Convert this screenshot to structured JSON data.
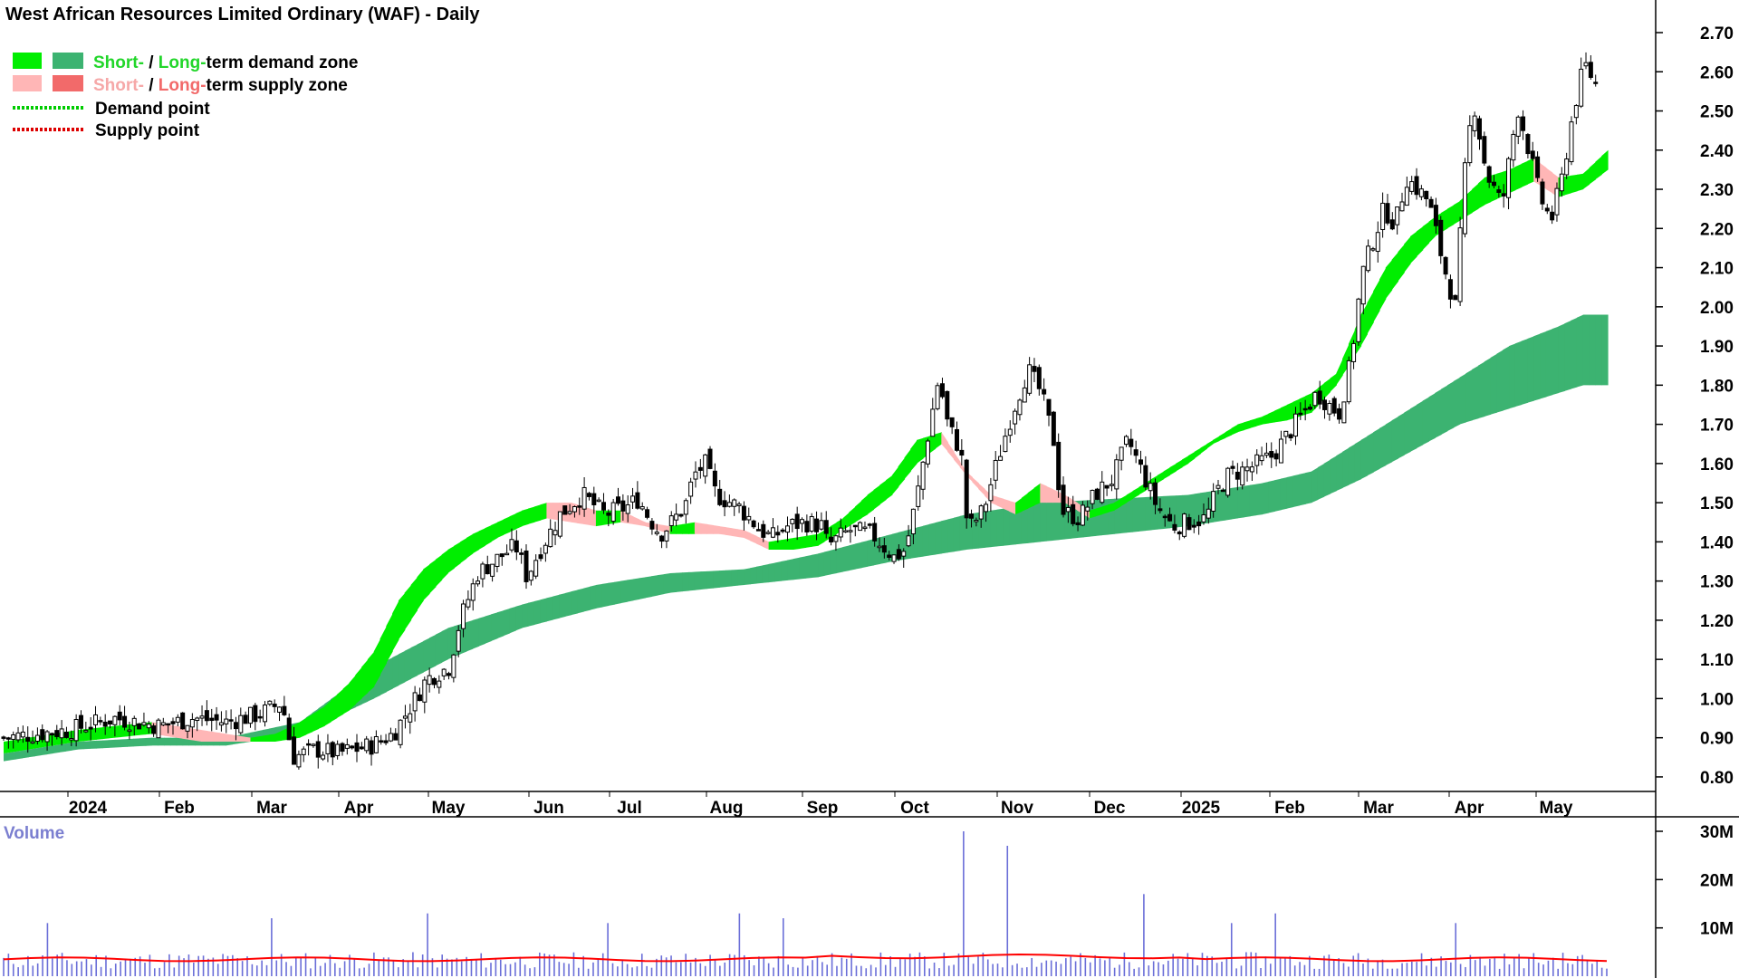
{
  "chart": {
    "title": "West African Resources Limited Ordinary (WAF) - Daily",
    "legend": {
      "demand_zone": {
        "short": "Short-",
        "sep": " / ",
        "long": "Long-",
        "suffix": "term demand zone"
      },
      "supply_zone": {
        "short": "Short-",
        "sep": " / ",
        "long": "Long-",
        "suffix": "term supply zone"
      },
      "demand_point": "Demand point",
      "supply_point": "Supply point"
    },
    "volume_title": "Volume",
    "colors": {
      "short_demand": "#00ee00",
      "long_demand": "#3cb371",
      "short_supply": "#ffb6b6",
      "long_supply": "#f26522",
      "candle": "#000000",
      "volume_bar": "#6a6ed8",
      "volume_ma": "#ff0000",
      "demand_point": "#00cc00",
      "supply_point": "#dd0000"
    }
  },
  "chart_data": [
    {
      "type": "candlestick",
      "title": "West African Resources Limited Ordinary (WAF) - Daily",
      "x_labels": [
        "2024",
        "Feb",
        "Mar",
        "Apr",
        "May",
        "Jun",
        "Jul",
        "Aug",
        "Sep",
        "Oct",
        "Nov",
        "Dec",
        "2025",
        "Feb",
        "Mar",
        "Apr",
        "May"
      ],
      "y_ticks": [
        "2.70",
        "2.60",
        "2.50",
        "2.40",
        "2.30",
        "2.20",
        "2.10",
        "2.00",
        "1.90",
        "1.80",
        "1.70",
        "1.60",
        "1.50",
        "1.40",
        "1.30",
        "1.20",
        "1.10",
        "1.00",
        "0.90",
        "0.80"
      ],
      "ylim": [
        0.75,
        2.78
      ],
      "grid": false,
      "legend": "top-left",
      "close_series": {
        "name": "Close",
        "points": [
          [
            0,
            0.9
          ],
          [
            3,
            0.92
          ],
          [
            5,
            0.95
          ],
          [
            7,
            0.93
          ],
          [
            8.5,
            0.95
          ],
          [
            10,
            0.94
          ],
          [
            11.5,
            0.96
          ],
          [
            12.5,
            0.99
          ],
          [
            13,
            0.85
          ],
          [
            14,
            0.87
          ],
          [
            15,
            0.86
          ],
          [
            16.5,
            0.88
          ],
          [
            17.5,
            0.91
          ],
          [
            18.5,
            1.0
          ],
          [
            19,
            1.05
          ],
          [
            20,
            1.08
          ],
          [
            20.5,
            1.2
          ],
          [
            21.3,
            1.32
          ],
          [
            22,
            1.35
          ],
          [
            23,
            1.39
          ],
          [
            23.5,
            1.31
          ],
          [
            24,
            1.37
          ],
          [
            25,
            1.47
          ],
          [
            26,
            1.52
          ],
          [
            27,
            1.47
          ],
          [
            28,
            1.49
          ],
          [
            28.5,
            1.51
          ],
          [
            29,
            1.46
          ],
          [
            29.5,
            1.42
          ],
          [
            30,
            1.45
          ],
          [
            30.6,
            1.49
          ],
          [
            31,
            1.57
          ],
          [
            31.5,
            1.6
          ],
          [
            32,
            1.52
          ],
          [
            33,
            1.49
          ],
          [
            34,
            1.43
          ],
          [
            34.5,
            1.41
          ],
          [
            35.2,
            1.44
          ],
          [
            36,
            1.45
          ],
          [
            36.8,
            1.44
          ],
          [
            37,
            1.39
          ],
          [
            38,
            1.43
          ],
          [
            39,
            1.42
          ],
          [
            40,
            1.36
          ],
          [
            40.5,
            1.38
          ],
          [
            41,
            1.51
          ],
          [
            41.6,
            1.7
          ],
          [
            42,
            1.82
          ],
          [
            42.4,
            1.7
          ],
          [
            43,
            1.63
          ],
          [
            43.3,
            1.43
          ],
          [
            44,
            1.48
          ],
          [
            44.6,
            1.6
          ],
          [
            45.3,
            1.73
          ],
          [
            46,
            1.84
          ],
          [
            46.6,
            1.78
          ],
          [
            47.2,
            1.65
          ],
          [
            47.5,
            1.48
          ],
          [
            48.3,
            1.46
          ],
          [
            49,
            1.52
          ],
          [
            49.8,
            1.56
          ],
          [
            50.5,
            1.66
          ],
          [
            51.2,
            1.57
          ],
          [
            51.8,
            1.49
          ],
          [
            52.5,
            1.44
          ],
          [
            53.2,
            1.45
          ],
          [
            54,
            1.46
          ],
          [
            54.5,
            1.53
          ],
          [
            55,
            1.57
          ],
          [
            56,
            1.59
          ],
          [
            57,
            1.62
          ],
          [
            58,
            1.7
          ],
          [
            59,
            1.78
          ],
          [
            59.7,
            1.74
          ],
          [
            60,
            1.73
          ],
          [
            60.5,
            1.86
          ],
          [
            61,
            2.08
          ],
          [
            61.5,
            2.17
          ],
          [
            62,
            2.25
          ],
          [
            62.5,
            2.21
          ],
          [
            63,
            2.33
          ],
          [
            64,
            2.27
          ],
          [
            64.7,
            2.1
          ],
          [
            65.2,
            2.0
          ],
          [
            65.6,
            2.33
          ],
          [
            66,
            2.53
          ],
          [
            66.6,
            2.34
          ],
          [
            67.3,
            2.26
          ],
          [
            68,
            2.51
          ],
          [
            68.5,
            2.4
          ],
          [
            69,
            2.28
          ],
          [
            69.5,
            2.22
          ],
          [
            70,
            2.33
          ],
          [
            70.5,
            2.5
          ],
          [
            71,
            2.62
          ],
          [
            71.5,
            2.57
          ]
        ]
      },
      "short_term_zone": {
        "upper": [
          [
            0,
            0.89
          ],
          [
            3,
            0.92
          ],
          [
            6,
            0.94
          ],
          [
            7,
            0.93
          ],
          [
            8,
            0.92
          ],
          [
            9,
            0.91
          ],
          [
            10,
            0.9
          ],
          [
            11,
            0.91
          ],
          [
            12,
            0.94
          ],
          [
            13,
            0.98
          ],
          [
            14,
            1.04
          ],
          [
            15,
            1.12
          ],
          [
            16,
            1.25
          ],
          [
            17,
            1.33
          ],
          [
            18,
            1.38
          ],
          [
            19,
            1.42
          ],
          [
            20,
            1.45
          ],
          [
            21,
            1.48
          ],
          [
            22,
            1.5
          ],
          [
            23,
            1.5
          ],
          [
            24,
            1.48
          ],
          [
            25,
            1.48
          ],
          [
            26,
            1.45
          ],
          [
            27,
            1.44
          ],
          [
            28,
            1.45
          ],
          [
            29,
            1.44
          ],
          [
            30,
            1.43
          ],
          [
            31,
            1.4
          ],
          [
            32,
            1.41
          ],
          [
            33,
            1.42
          ],
          [
            34,
            1.46
          ],
          [
            35,
            1.52
          ],
          [
            36,
            1.57
          ],
          [
            37,
            1.66
          ],
          [
            38,
            1.68
          ],
          [
            39,
            1.58
          ],
          [
            40,
            1.52
          ],
          [
            41,
            1.5
          ],
          [
            42,
            1.55
          ],
          [
            43,
            1.52
          ],
          [
            44,
            1.48
          ],
          [
            45,
            1.5
          ],
          [
            46,
            1.54
          ],
          [
            47,
            1.58
          ],
          [
            48,
            1.62
          ],
          [
            49,
            1.66
          ],
          [
            50,
            1.7
          ],
          [
            51,
            1.72
          ],
          [
            52,
            1.75
          ],
          [
            53,
            1.78
          ],
          [
            54,
            1.83
          ],
          [
            55,
            1.98
          ],
          [
            56,
            2.1
          ],
          [
            57,
            2.18
          ],
          [
            58,
            2.23
          ],
          [
            59,
            2.27
          ],
          [
            60,
            2.33
          ],
          [
            61,
            2.35
          ],
          [
            62,
            2.38
          ],
          [
            63,
            2.33
          ],
          [
            64,
            2.34
          ],
          [
            65,
            2.4
          ]
        ],
        "lower": [
          [
            0,
            0.86
          ],
          [
            3,
            0.89
          ],
          [
            6,
            0.91
          ],
          [
            7,
            0.9
          ],
          [
            8,
            0.89
          ],
          [
            9,
            0.89
          ],
          [
            10,
            0.89
          ],
          [
            11,
            0.89
          ],
          [
            12,
            0.9
          ],
          [
            13,
            0.93
          ],
          [
            14,
            0.97
          ],
          [
            15,
            1.03
          ],
          [
            16,
            1.15
          ],
          [
            17,
            1.25
          ],
          [
            18,
            1.32
          ],
          [
            19,
            1.37
          ],
          [
            20,
            1.41
          ],
          [
            21,
            1.44
          ],
          [
            22,
            1.46
          ],
          [
            23,
            1.45
          ],
          [
            24,
            1.44
          ],
          [
            25,
            1.45
          ],
          [
            26,
            1.44
          ],
          [
            27,
            1.42
          ],
          [
            28,
            1.42
          ],
          [
            29,
            1.42
          ],
          [
            30,
            1.41
          ],
          [
            31,
            1.38
          ],
          [
            32,
            1.38
          ],
          [
            33,
            1.39
          ],
          [
            34,
            1.43
          ],
          [
            35,
            1.47
          ],
          [
            36,
            1.52
          ],
          [
            37,
            1.6
          ],
          [
            38,
            1.65
          ],
          [
            39,
            1.57
          ],
          [
            40,
            1.5
          ],
          [
            41,
            1.47
          ],
          [
            42,
            1.5
          ],
          [
            43,
            1.5
          ],
          [
            44,
            1.46
          ],
          [
            45,
            1.48
          ],
          [
            46,
            1.52
          ],
          [
            47,
            1.56
          ],
          [
            48,
            1.6
          ],
          [
            49,
            1.65
          ],
          [
            50,
            1.68
          ],
          [
            51,
            1.7
          ],
          [
            52,
            1.71
          ],
          [
            53,
            1.73
          ],
          [
            54,
            1.8
          ],
          [
            55,
            1.9
          ],
          [
            56,
            2.02
          ],
          [
            57,
            2.11
          ],
          [
            58,
            2.18
          ],
          [
            59,
            2.22
          ],
          [
            60,
            2.26
          ],
          [
            61,
            2.29
          ],
          [
            62,
            2.32
          ],
          [
            63,
            2.28
          ],
          [
            64,
            2.3
          ],
          [
            65,
            2.35
          ]
        ]
      },
      "long_term_zone": {
        "upper": [
          [
            0,
            0.86
          ],
          [
            3,
            0.89
          ],
          [
            6,
            0.9
          ],
          [
            9,
            0.9
          ],
          [
            12,
            0.94
          ],
          [
            15,
            1.08
          ],
          [
            18,
            1.18
          ],
          [
            21,
            1.24
          ],
          [
            24,
            1.29
          ],
          [
            27,
            1.32
          ],
          [
            30,
            1.33
          ],
          [
            33,
            1.37
          ],
          [
            36,
            1.42
          ],
          [
            39,
            1.47
          ],
          [
            42,
            1.5
          ],
          [
            45,
            1.51
          ],
          [
            48,
            1.52
          ],
          [
            51,
            1.55
          ],
          [
            53,
            1.58
          ],
          [
            55,
            1.66
          ],
          [
            57,
            1.74
          ],
          [
            59,
            1.82
          ],
          [
            61,
            1.9
          ],
          [
            63,
            1.95
          ],
          [
            64,
            1.98
          ]
        ],
        "lower": [
          [
            0,
            0.84
          ],
          [
            3,
            0.87
          ],
          [
            6,
            0.88
          ],
          [
            9,
            0.88
          ],
          [
            12,
            0.91
          ],
          [
            15,
            1.0
          ],
          [
            18,
            1.1
          ],
          [
            21,
            1.18
          ],
          [
            24,
            1.23
          ],
          [
            27,
            1.27
          ],
          [
            30,
            1.29
          ],
          [
            33,
            1.31
          ],
          [
            36,
            1.35
          ],
          [
            39,
            1.38
          ],
          [
            42,
            1.4
          ],
          [
            45,
            1.42
          ],
          [
            48,
            1.44
          ],
          [
            51,
            1.47
          ],
          [
            53,
            1.5
          ],
          [
            55,
            1.56
          ],
          [
            57,
            1.63
          ],
          [
            59,
            1.7
          ],
          [
            61,
            1.74
          ],
          [
            63,
            1.78
          ],
          [
            64,
            1.8
          ]
        ]
      }
    },
    {
      "type": "bar",
      "title": "Volume",
      "y_ticks": [
        "30M",
        "20M",
        "10M"
      ],
      "ylim": [
        0,
        32
      ],
      "units": "M",
      "volume_ma_level": 3.5,
      "spikes": [
        {
          "x": 2,
          "value": 11
        },
        {
          "x": 12,
          "value": 12
        },
        {
          "x": 19,
          "value": 13
        },
        {
          "x": 27,
          "value": 11
        },
        {
          "x": 33,
          "value": 13
        },
        {
          "x": 35,
          "value": 12
        },
        {
          "x": 43,
          "value": 30
        },
        {
          "x": 45,
          "value": 27
        },
        {
          "x": 51,
          "value": 17
        },
        {
          "x": 55,
          "value": 11
        },
        {
          "x": 57,
          "value": 13
        },
        {
          "x": 65,
          "value": 11
        }
      ]
    }
  ]
}
